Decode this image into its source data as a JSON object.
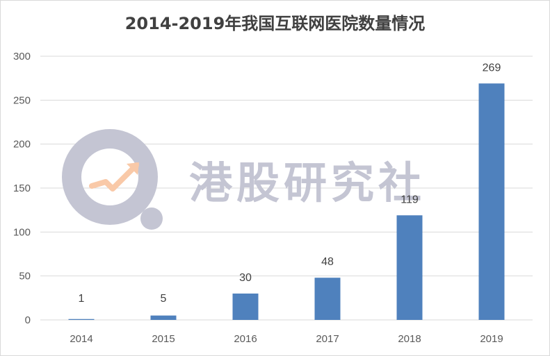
{
  "chart_data": {
    "type": "bar",
    "title": "2014-2019年我国互联网医院数量情况",
    "xlabel": "",
    "ylabel": "",
    "categories": [
      "2014",
      "2015",
      "2016",
      "2017",
      "2018",
      "2019"
    ],
    "values": [
      1,
      5,
      30,
      48,
      119,
      269
    ],
    "data_labels": [
      "1",
      "5",
      "30",
      "48",
      "119",
      "269"
    ],
    "ylim": [
      0,
      300
    ],
    "yticks": [
      0,
      50,
      100,
      150,
      200,
      250,
      300
    ],
    "grid": true,
    "legend": "none",
    "bar_color": "#4f81bd",
    "grid_color": "#d9d9d9"
  },
  "watermark": {
    "text": "港股研究社",
    "logo_icon": "magnifier-arrow-logo-icon",
    "color": "#c4c5d3",
    "accent_color": "#f9c9a8"
  }
}
